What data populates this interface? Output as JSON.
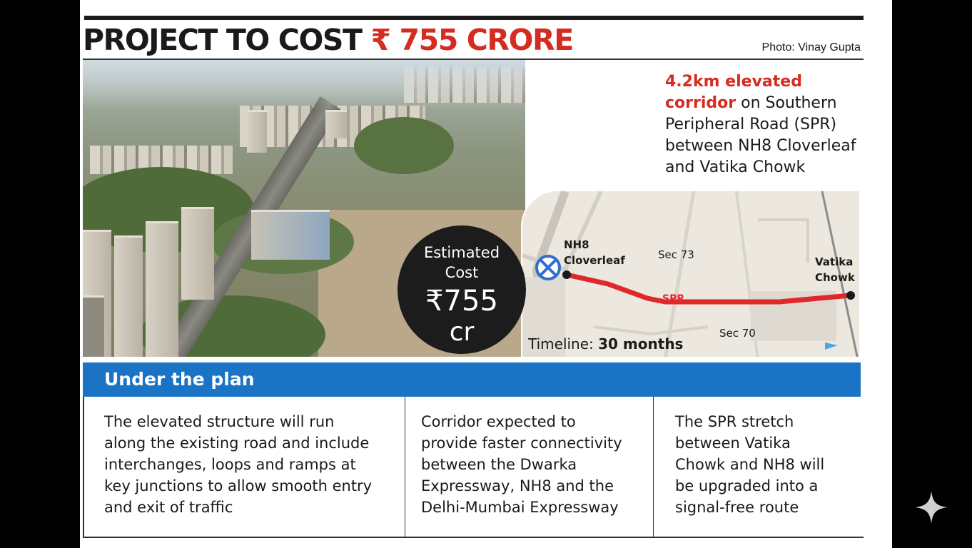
{
  "headline": {
    "part1": "PROJECT TO COST",
    "part2": "₹ 755 CRORE"
  },
  "photo_credit": "Photo: Vinay Gupta",
  "description": {
    "highlight": "4.2km elevated corridor",
    "text": " on Southern Peripheral Road (SPR) between NH8 Cloverleaf and Vatika Chowk"
  },
  "cost_badge": {
    "line1": "Estimated",
    "line2": "Cost",
    "value": "₹755",
    "unit": "cr"
  },
  "map": {
    "nh8_line1": "NH8",
    "nh8_line2": "Cloverleaf",
    "sec73": "Sec 73",
    "sec70": "Sec 70",
    "spr": "SPR",
    "vatika_line1": "Vatika",
    "vatika_line2": "Chowk",
    "route_color": "#e0282a"
  },
  "timeline": {
    "label": "Timeline:",
    "value": "30 months"
  },
  "plan": {
    "title": "Under the plan",
    "columns": [
      {
        "lines": [
          "The elevated structure will run",
          "along the existing road and include",
          "interchanges, loops and ramps at",
          "key junctions to allow smooth entry",
          "and exit of traffic"
        ]
      },
      {
        "lines": [
          "Corridor expected to",
          "provide faster connectivity",
          "between the Dwarka",
          "Expressway, NH8 and the",
          "Delhi-Mumbai Expressway"
        ]
      },
      {
        "lines": [
          "The SPR stretch",
          "between Vatika",
          "Chowk and NH8 will",
          "be upgraded into a",
          "signal-free route"
        ]
      }
    ]
  },
  "colors": {
    "accent_red": "#d62b20",
    "accent_blue": "#1a73c4"
  }
}
